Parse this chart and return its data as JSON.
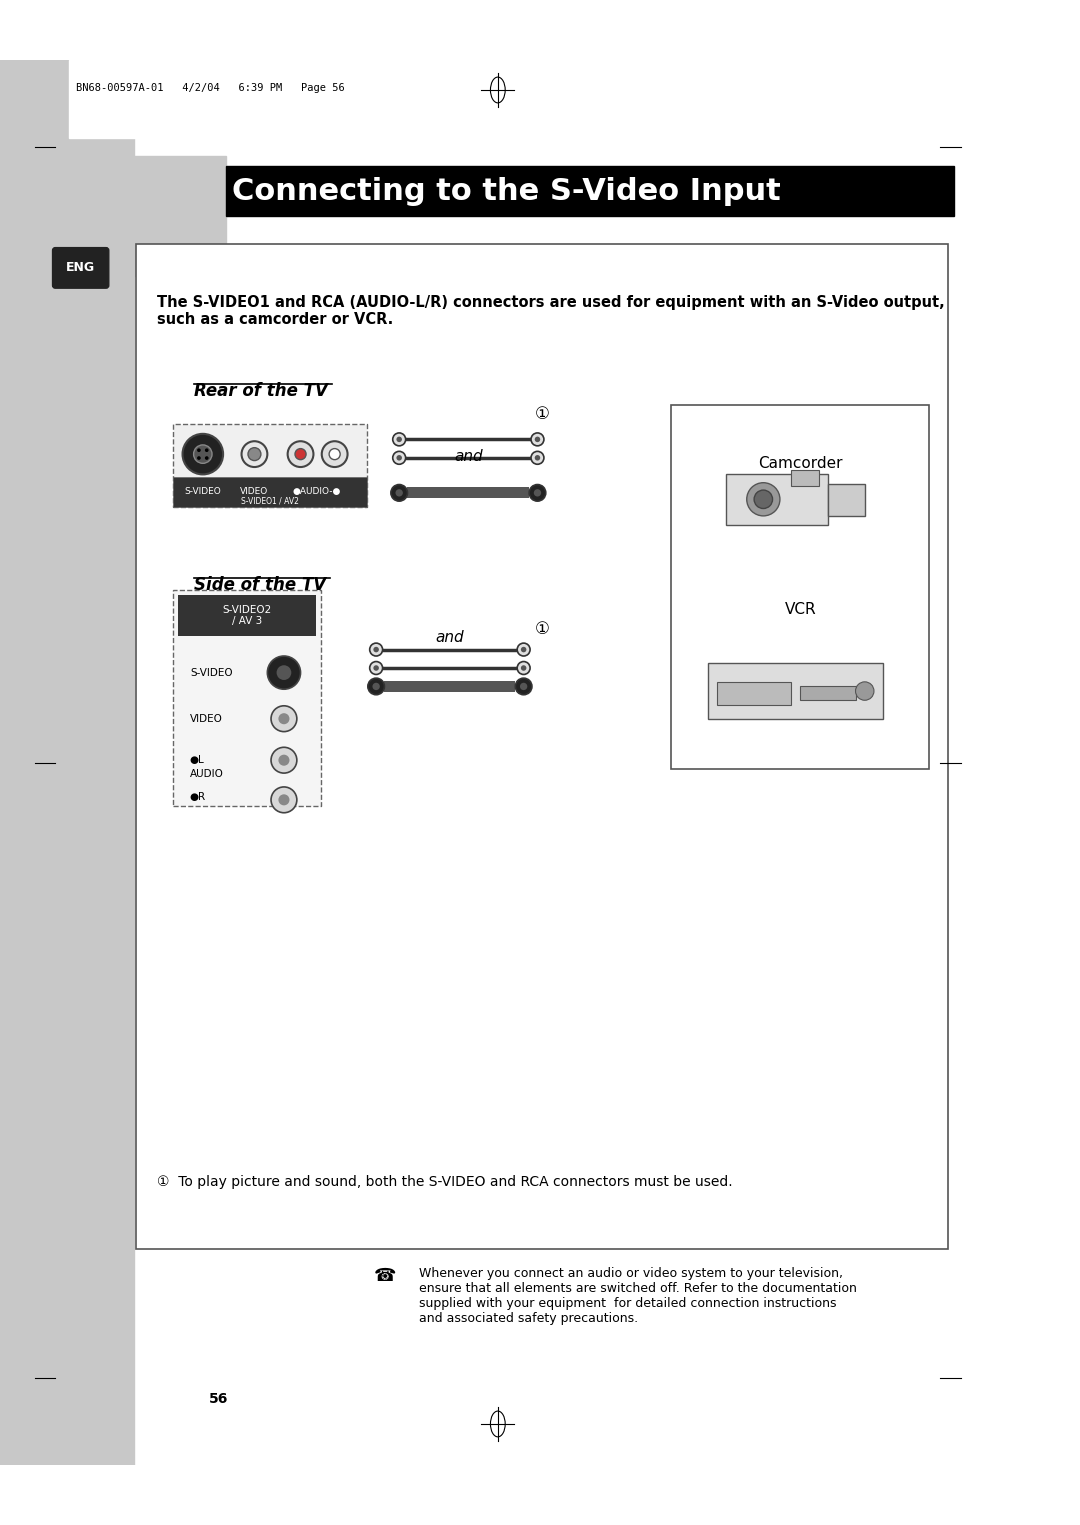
{
  "page_bg": "#ffffff",
  "outer_bg": "#c8c8c8",
  "title": "Connecting to the S-Video Input",
  "title_bg": "#000000",
  "title_color": "#ffffff",
  "header_text": "BN68-00597A-01   4/2/04   6:39 PM   Page 56",
  "intro_text": "The S-VIDEO1 and RCA (AUDIO-L/R) connectors are used for equipment with an S-Video output,\nsuch as a camcorder or VCR.",
  "rear_label": "Rear of the TV",
  "side_label": "Side of the TV",
  "rear_panel_labels": [
    "S-VIDEO",
    "VIDEO",
    "●AUDIO-●",
    "S-VIDEO1 / AV2"
  ],
  "side_panel_labels": [
    "S-VIDEO2\n/ AV 3",
    "S-VIDEO",
    "VIDEO",
    "●\nL\nAUDIO\n●\nR"
  ],
  "footnote": "①  To play picture and sound, both the S-VIDEO and RCA connectors must be used.",
  "note_text": "Whenever you connect an audio or video system to your television,\nensure that all elements are switched off. Refer to the documentation\nsupplied with your equipment  for detailed connection instructions\nand associated safety precautions.",
  "camcorder_label": "Camcorder",
  "vcr_label": "VCR",
  "page_number": "56",
  "circle_number": "①"
}
